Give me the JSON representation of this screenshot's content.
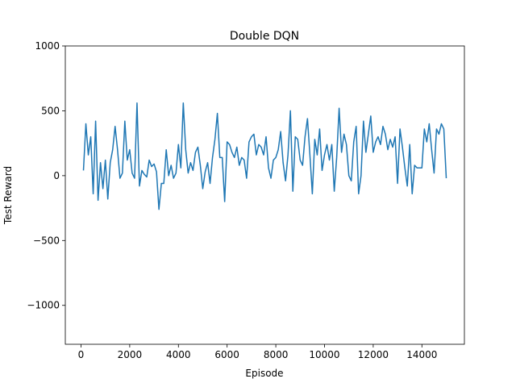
{
  "chart_data": {
    "type": "line",
    "title": "Double DQN",
    "xlabel": "Episode",
    "ylabel": "Test Reward",
    "x": [
      100,
      200,
      300,
      400,
      500,
      600,
      700,
      800,
      900,
      1000,
      1100,
      1200,
      1300,
      1400,
      1500,
      1600,
      1700,
      1800,
      1900,
      2000,
      2100,
      2200,
      2300,
      2400,
      2500,
      2600,
      2700,
      2800,
      2900,
      3000,
      3100,
      3200,
      3300,
      3400,
      3500,
      3600,
      3700,
      3800,
      3900,
      4000,
      4100,
      4200,
      4300,
      4400,
      4500,
      4600,
      4700,
      4800,
      4900,
      5000,
      5100,
      5200,
      5300,
      5400,
      5500,
      5600,
      5700,
      5800,
      5900,
      6000,
      6100,
      6200,
      6300,
      6400,
      6500,
      6600,
      6700,
      6800,
      6900,
      7000,
      7100,
      7200,
      7300,
      7400,
      7500,
      7600,
      7700,
      7800,
      7900,
      8000,
      8100,
      8200,
      8300,
      8400,
      8500,
      8600,
      8700,
      8800,
      8900,
      9000,
      9100,
      9200,
      9300,
      9400,
      9500,
      9600,
      9700,
      9800,
      9900,
      10000,
      10100,
      10200,
      10300,
      10400,
      10500,
      10600,
      10700,
      10800,
      10900,
      11000,
      11100,
      11200,
      11300,
      11400,
      11500,
      11600,
      11700,
      11800,
      11900,
      12000,
      12100,
      12200,
      12300,
      12400,
      12500,
      12600,
      12700,
      12800,
      12900,
      13000,
      13100,
      13200,
      13300,
      13400,
      13500,
      13600,
      13700,
      13800,
      13900,
      14000,
      14100,
      14200,
      14300,
      14400,
      14500,
      14600,
      14700,
      14800,
      14900,
      15000
    ],
    "series": [
      {
        "color": "#1f77b4",
        "values": [
          40,
          400,
          160,
          300,
          -140,
          420,
          -190,
          100,
          -100,
          120,
          -180,
          100,
          200,
          380,
          200,
          -20,
          20,
          420,
          120,
          200,
          20,
          -20,
          560,
          -80,
          40,
          10,
          -10,
          120,
          70,
          90,
          30,
          -260,
          -60,
          -60,
          200,
          0,
          80,
          -20,
          20,
          240,
          60,
          560,
          200,
          20,
          100,
          40,
          180,
          220,
          80,
          -100,
          30,
          100,
          -60,
          140,
          280,
          480,
          140,
          140,
          -200,
          260,
          240,
          180,
          140,
          220,
          80,
          140,
          120,
          -20,
          260,
          300,
          320,
          160,
          240,
          220,
          160,
          300,
          60,
          -20,
          120,
          140,
          200,
          340,
          100,
          -40,
          160,
          500,
          -120,
          300,
          280,
          120,
          80,
          300,
          440,
          160,
          -140,
          280,
          160,
          360,
          40,
          160,
          240,
          120,
          240,
          -120,
          140,
          520,
          180,
          320,
          240,
          0,
          -40,
          260,
          380,
          -140,
          0,
          420,
          180,
          320,
          460,
          180,
          260,
          300,
          240,
          380,
          320,
          200,
          280,
          220,
          300,
          -60,
          360,
          220,
          60,
          -80,
          240,
          -140,
          80,
          60,
          60,
          60,
          360,
          260,
          400,
          200,
          20,
          360,
          320,
          400,
          360,
          -20
        ]
      }
    ],
    "xlim": [
      -645,
      15745
    ],
    "ylim": [
      -1300,
      1000
    ],
    "xticks": [
      0,
      2000,
      4000,
      6000,
      8000,
      10000,
      12000,
      14000
    ],
    "yticks": [
      {
        "value": -1000,
        "label": "−1000"
      },
      {
        "value": -500,
        "label": "−500"
      },
      0,
      500,
      1000
    ]
  }
}
